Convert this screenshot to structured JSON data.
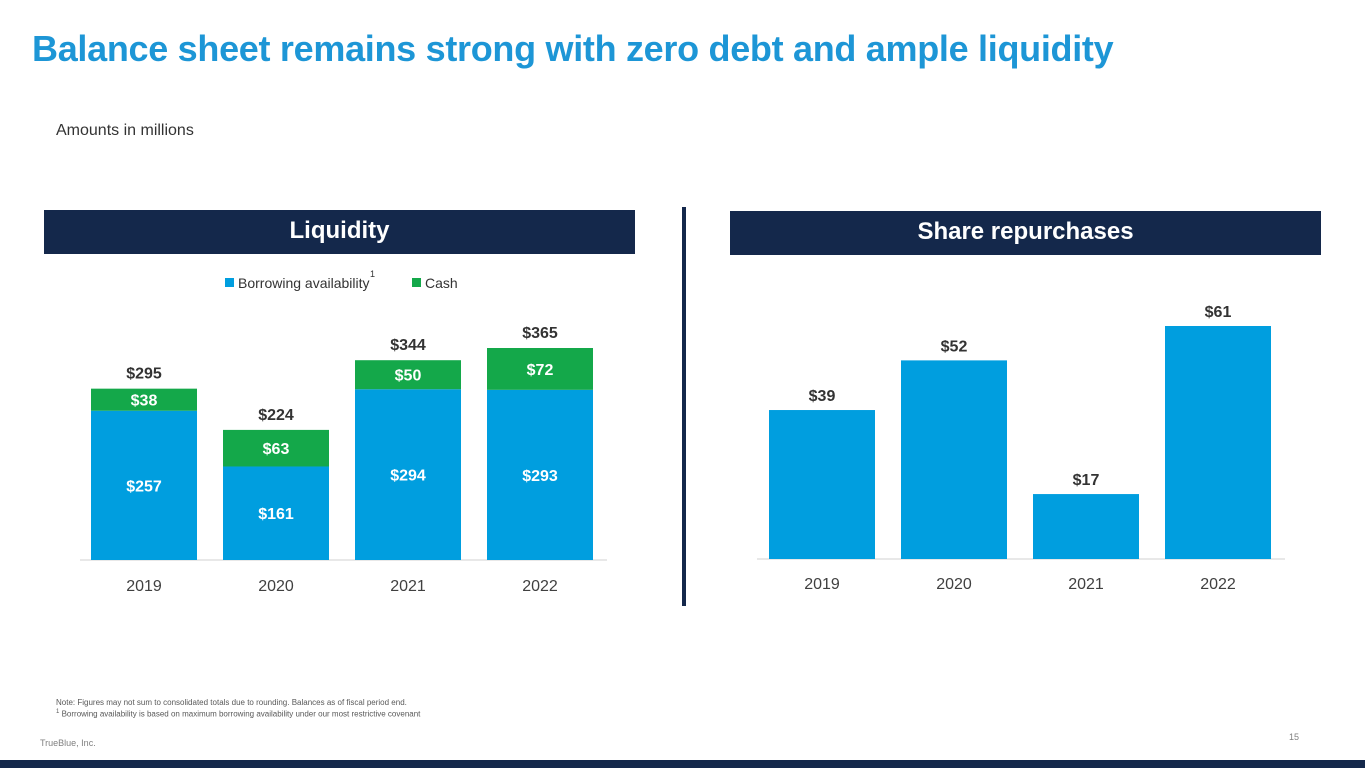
{
  "title": "Balance sheet remains strong with zero debt and ample liquidity",
  "subtitle": "Amounts in millions",
  "colors": {
    "title": "#1d96d6",
    "header_bg": "#14284b",
    "borrowing": "#009edf",
    "cash": "#14a84a"
  },
  "footnotes": {
    "note": "Note: Figures may not sum to consolidated totals due to rounding. Balances as of fiscal period end.",
    "sup": "1",
    "footnote1": "Borrowing availability is based on maximum borrowing availability under our most restrictive covenant"
  },
  "company": "TrueBlue, Inc.",
  "page_number": "15",
  "chart_data": [
    {
      "type": "bar",
      "stacked": true,
      "title": "Liquidity",
      "categories": [
        "2019",
        "2020",
        "2021",
        "2022"
      ],
      "legend": {
        "borrowing_label": "Borrowing availability",
        "borrowing_sup": "1",
        "cash_label": "Cash",
        "position": "top-center"
      },
      "series": [
        {
          "name": "Borrowing availability",
          "values": [
            257,
            161,
            294,
            293
          ],
          "labels": [
            "$257",
            "$161",
            "$294",
            "$293"
          ]
        },
        {
          "name": "Cash",
          "values": [
            38,
            63,
            50,
            72
          ],
          "labels": [
            "$38",
            "$63",
            "$50",
            "$72"
          ]
        }
      ],
      "totals": [
        295,
        224,
        344,
        365
      ],
      "total_labels": [
        "$295",
        "$224",
        "$344",
        "$365"
      ],
      "ylim": [
        0,
        365
      ]
    },
    {
      "type": "bar",
      "title": "Share repurchases",
      "categories": [
        "2019",
        "2020",
        "2021",
        "2022"
      ],
      "values": [
        39,
        52,
        17,
        61
      ],
      "labels": [
        "$39",
        "$52",
        "$17",
        "$61"
      ],
      "ylim": [
        0,
        61
      ]
    }
  ]
}
